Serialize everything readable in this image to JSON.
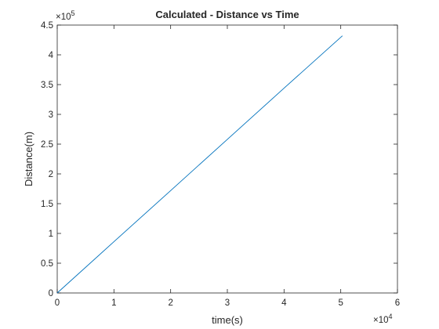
{
  "chart_data": {
    "type": "line",
    "title": "Calculated - Distance vs Time",
    "xlabel": "time(s)",
    "ylabel": "Distance(m)",
    "x_exponent": "4",
    "y_exponent": "5",
    "xlim": [
      0,
      60000
    ],
    "ylim": [
      0,
      450000
    ],
    "x_ticks": [
      0,
      10000,
      20000,
      30000,
      40000,
      50000,
      60000
    ],
    "x_tick_labels": [
      "0",
      "1",
      "2",
      "3",
      "4",
      "5",
      "6"
    ],
    "y_ticks": [
      0,
      50000,
      100000,
      150000,
      200000,
      250000,
      300000,
      350000,
      400000,
      450000
    ],
    "y_tick_labels": [
      "0",
      "0.5",
      "1",
      "1.5",
      "2",
      "2.5",
      "3",
      "3.5",
      "4",
      "4.5"
    ],
    "grid": false,
    "legend": "none",
    "series": [
      {
        "color": "#0072bd",
        "x": [
          0,
          10000,
          20000,
          30000,
          40000,
          50300
        ],
        "y": [
          0,
          86000,
          172000,
          258000,
          344000,
          432000
        ]
      }
    ]
  }
}
